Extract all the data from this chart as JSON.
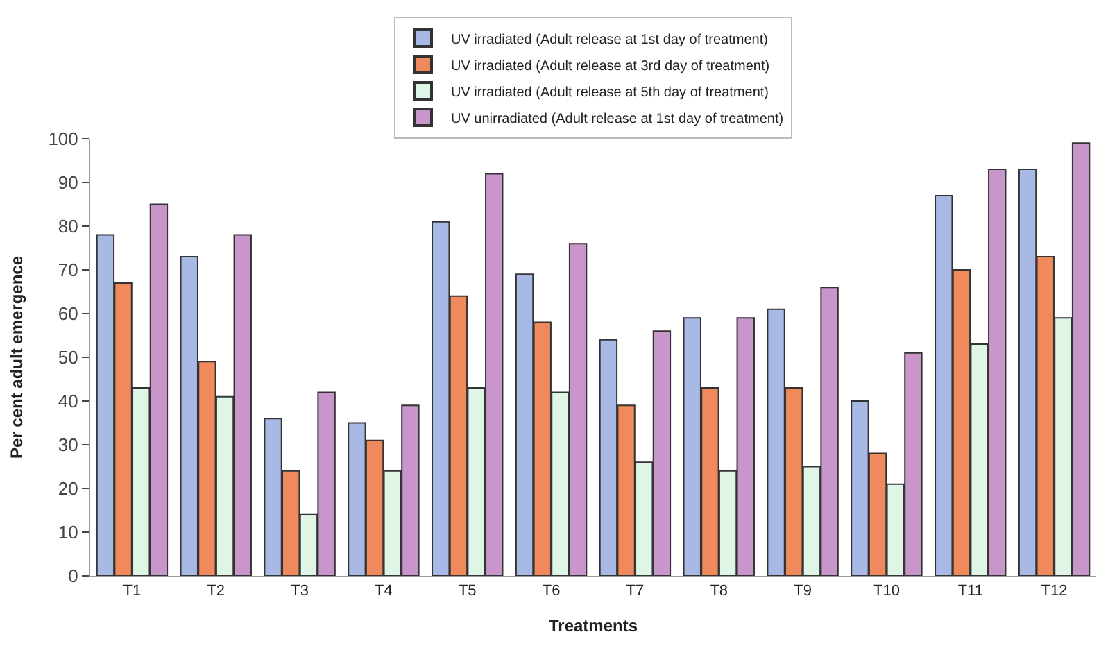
{
  "chart_data": {
    "type": "bar",
    "xlabel": "Treatments",
    "ylabel": "Per cent adult emergence",
    "categories": [
      "T1",
      "T2",
      "T3",
      "T4",
      "T5",
      "T6",
      "T7",
      "T8",
      "T9",
      "T10",
      "T11",
      "T12"
    ],
    "series": [
      {
        "name": "UV irradiated (Adult release at 1st day of treatment)",
        "color": "#a9b9e6",
        "values": [
          78,
          73,
          36,
          35,
          81,
          69,
          54,
          59,
          61,
          40,
          87,
          93
        ]
      },
      {
        "name": "UV irradiated (Adult release at 3rd day of treatment)",
        "color": "#f08a5c",
        "values": [
          67,
          49,
          24,
          31,
          64,
          58,
          39,
          43,
          43,
          28,
          70,
          73
        ]
      },
      {
        "name": "UV irradiated (Adult release at 5th day of treatment)",
        "color": "#dff5e6",
        "values": [
          43,
          41,
          14,
          24,
          43,
          42,
          26,
          24,
          25,
          21,
          53,
          59
        ]
      },
      {
        "name": "UV unirradiated (Adult release at 1st day of treatment)",
        "color": "#c996cc",
        "values": [
          85,
          78,
          42,
          39,
          92,
          76,
          56,
          59,
          66,
          51,
          93,
          99
        ]
      }
    ],
    "ylim": [
      0,
      100
    ],
    "yticks": [
      0,
      10,
      20,
      30,
      40,
      50,
      60,
      70,
      80,
      90,
      100
    ],
    "legend": "top"
  }
}
